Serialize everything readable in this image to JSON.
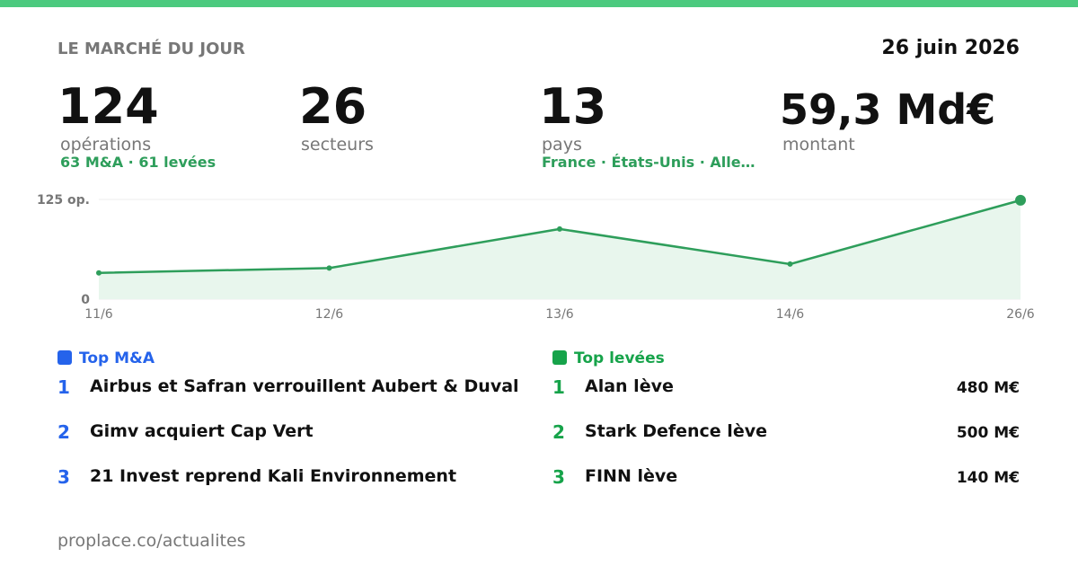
{
  "header": {
    "title": "LE MARCHÉ DU JOUR",
    "date": "26 juin 2026"
  },
  "stats": [
    {
      "value": "124",
      "label": "opérations",
      "detail": "63 M&A · 61 levées"
    },
    {
      "value": "26",
      "label": "secteurs"
    },
    {
      "value": "13",
      "label": "pays",
      "detail": "France · États-Unis · Alle…"
    },
    {
      "value": "59,3 Md€",
      "label": "montant"
    }
  ],
  "chart_data": {
    "type": "line",
    "categories": [
      "11/6",
      "12/6",
      "13/6",
      "14/6",
      "26/6"
    ],
    "values": [
      33,
      39,
      88,
      44,
      124
    ],
    "color": "#2e9e5b",
    "ylim": [
      0,
      125
    ],
    "yticks": [
      0,
      {
        "value": 125,
        "label": "125 op."
      }
    ]
  },
  "top_ma": {
    "title": "Top M&A",
    "items": [
      {
        "rank": 1,
        "title": "Airbus et Safran verrouillent Aubert & Duval"
      },
      {
        "rank": 2,
        "title": "Gimv acquiert Cap Vert"
      },
      {
        "rank": 3,
        "title": "21 Invest reprend Kali Environnement"
      }
    ]
  },
  "top_levees": {
    "title": "Top levées",
    "items": [
      {
        "rank": 1,
        "title": "Alan lève",
        "amount": "480 M€"
      },
      {
        "rank": 2,
        "title": "Stark Defence lève",
        "amount": "500 M€"
      },
      {
        "rank": 3,
        "title": "FINN lève",
        "amount": "140 M€"
      }
    ]
  },
  "footer": {
    "url": "proplace.co/actualites"
  }
}
